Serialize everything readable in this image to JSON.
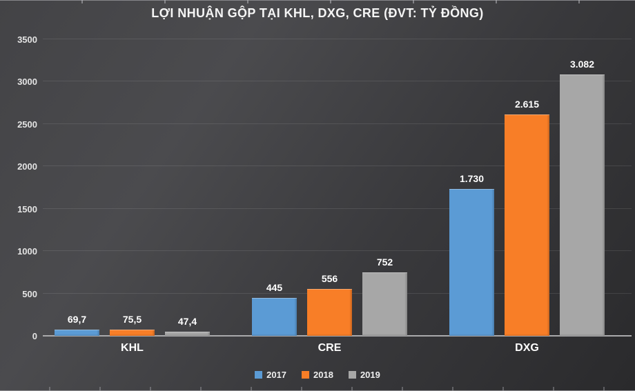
{
  "chart_data": {
    "type": "bar",
    "title": "LỢI NHUẬN GỘP TẠI KHL, DXG, CRE (ĐVT: TỶ ĐỒNG)",
    "categories": [
      "KHL",
      "CRE",
      "DXG"
    ],
    "series": [
      {
        "name": "2017",
        "color": "#5B9BD5",
        "values": [
          69.7,
          445,
          1730
        ],
        "labels": [
          "69,7",
          "445",
          "1.730"
        ]
      },
      {
        "name": "2018",
        "color": "#F87E27",
        "values": [
          75.5,
          556,
          2615
        ],
        "labels": [
          "75,5",
          "556",
          "2.615"
        ]
      },
      {
        "name": "2019",
        "color": "#A7A7A7",
        "values": [
          47.4,
          752,
          3082
        ],
        "labels": [
          "47,4",
          "752",
          "3.082"
        ]
      }
    ],
    "xlabel": "",
    "ylabel": "",
    "ylim": [
      0,
      3500
    ],
    "yticks": [
      0,
      500,
      1000,
      1500,
      2000,
      2500,
      3000,
      3500
    ],
    "grid": true,
    "legend_position": "bottom",
    "background": "dark-gray-gradient",
    "text_color": "#ffffff"
  }
}
